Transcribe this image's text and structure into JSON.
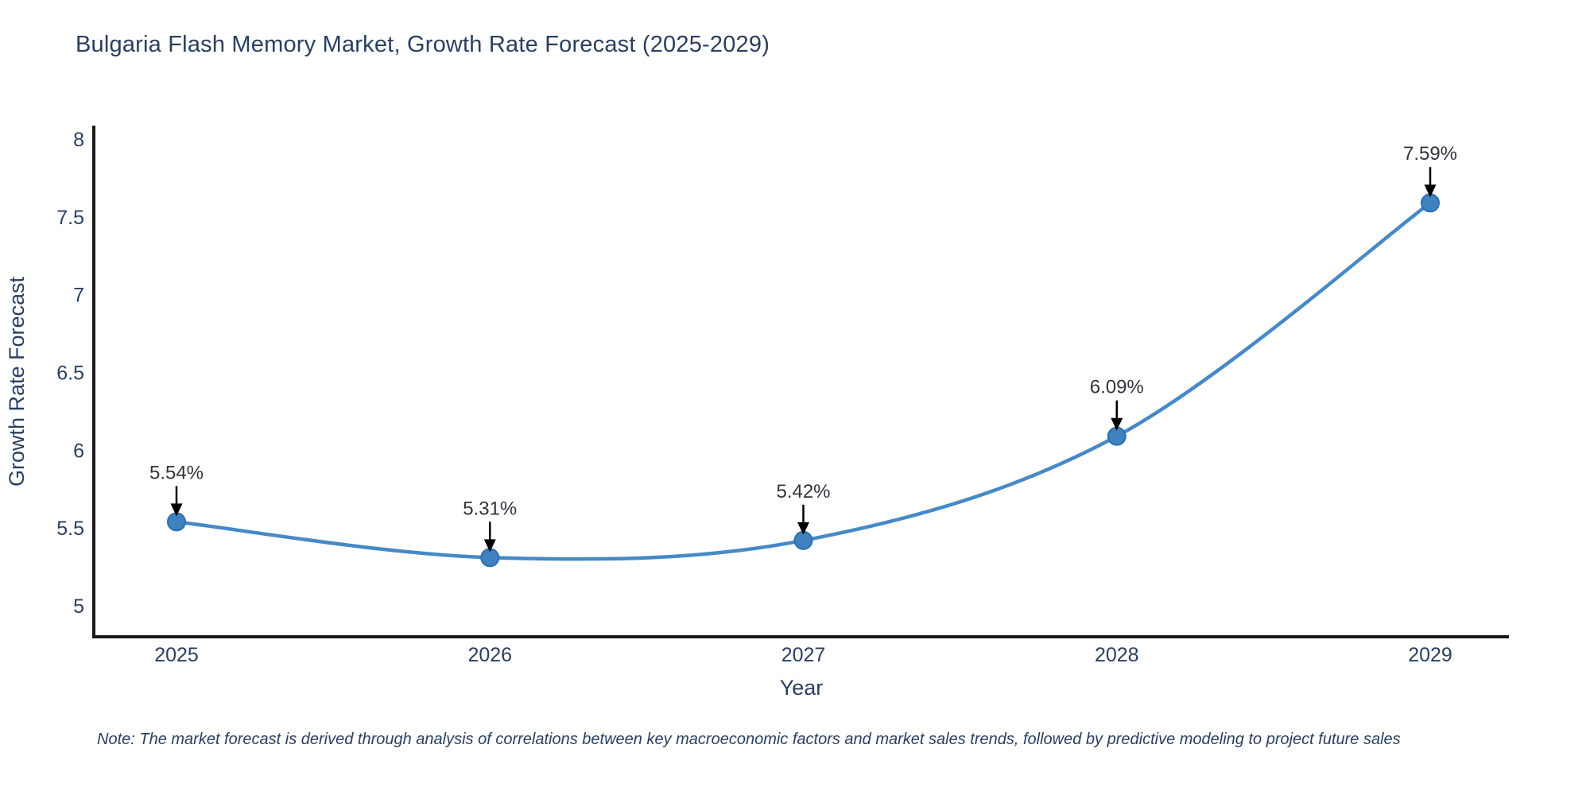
{
  "chart_data": {
    "type": "line",
    "title": "Bulgaria Flash Memory Market, Growth Rate Forecast (2025-2029)",
    "xlabel": "Year",
    "ylabel": "Growth Rate Forecast",
    "categories": [
      "2025",
      "2026",
      "2027",
      "2028",
      "2029"
    ],
    "series": [
      {
        "name": "Growth Rate Forecast",
        "values": [
          5.54,
          5.31,
          5.42,
          6.09,
          7.59
        ]
      }
    ],
    "point_labels": [
      "5.54%",
      "5.31%",
      "5.42%",
      "6.09%",
      "7.59%"
    ],
    "ytick_values": [
      8,
      7.5,
      7,
      6.5,
      6,
      5.5,
      5
    ],
    "ytick_labels": [
      "8",
      "7.5",
      "7",
      "6.5",
      "6",
      "5.5",
      "5"
    ],
    "ylim": [
      5,
      8.07
    ],
    "grid": false,
    "legend": "none",
    "line_shape": "spline",
    "colors": {
      "line": "#4689c6",
      "marker_fill": "#3e82c0",
      "marker_stroke": "#2f6fad",
      "axis": "#1a1a1a",
      "tick_text": "#2a3f5f",
      "title_text": "#2a3f5f",
      "annotation_text": "#30353b",
      "arrow": "#000000"
    }
  },
  "note": {
    "text": "Note: The market forecast is derived through analysis of correlations between key macroeconomic factors and market sales trends, followed by predictive modeling to project future sales"
  }
}
